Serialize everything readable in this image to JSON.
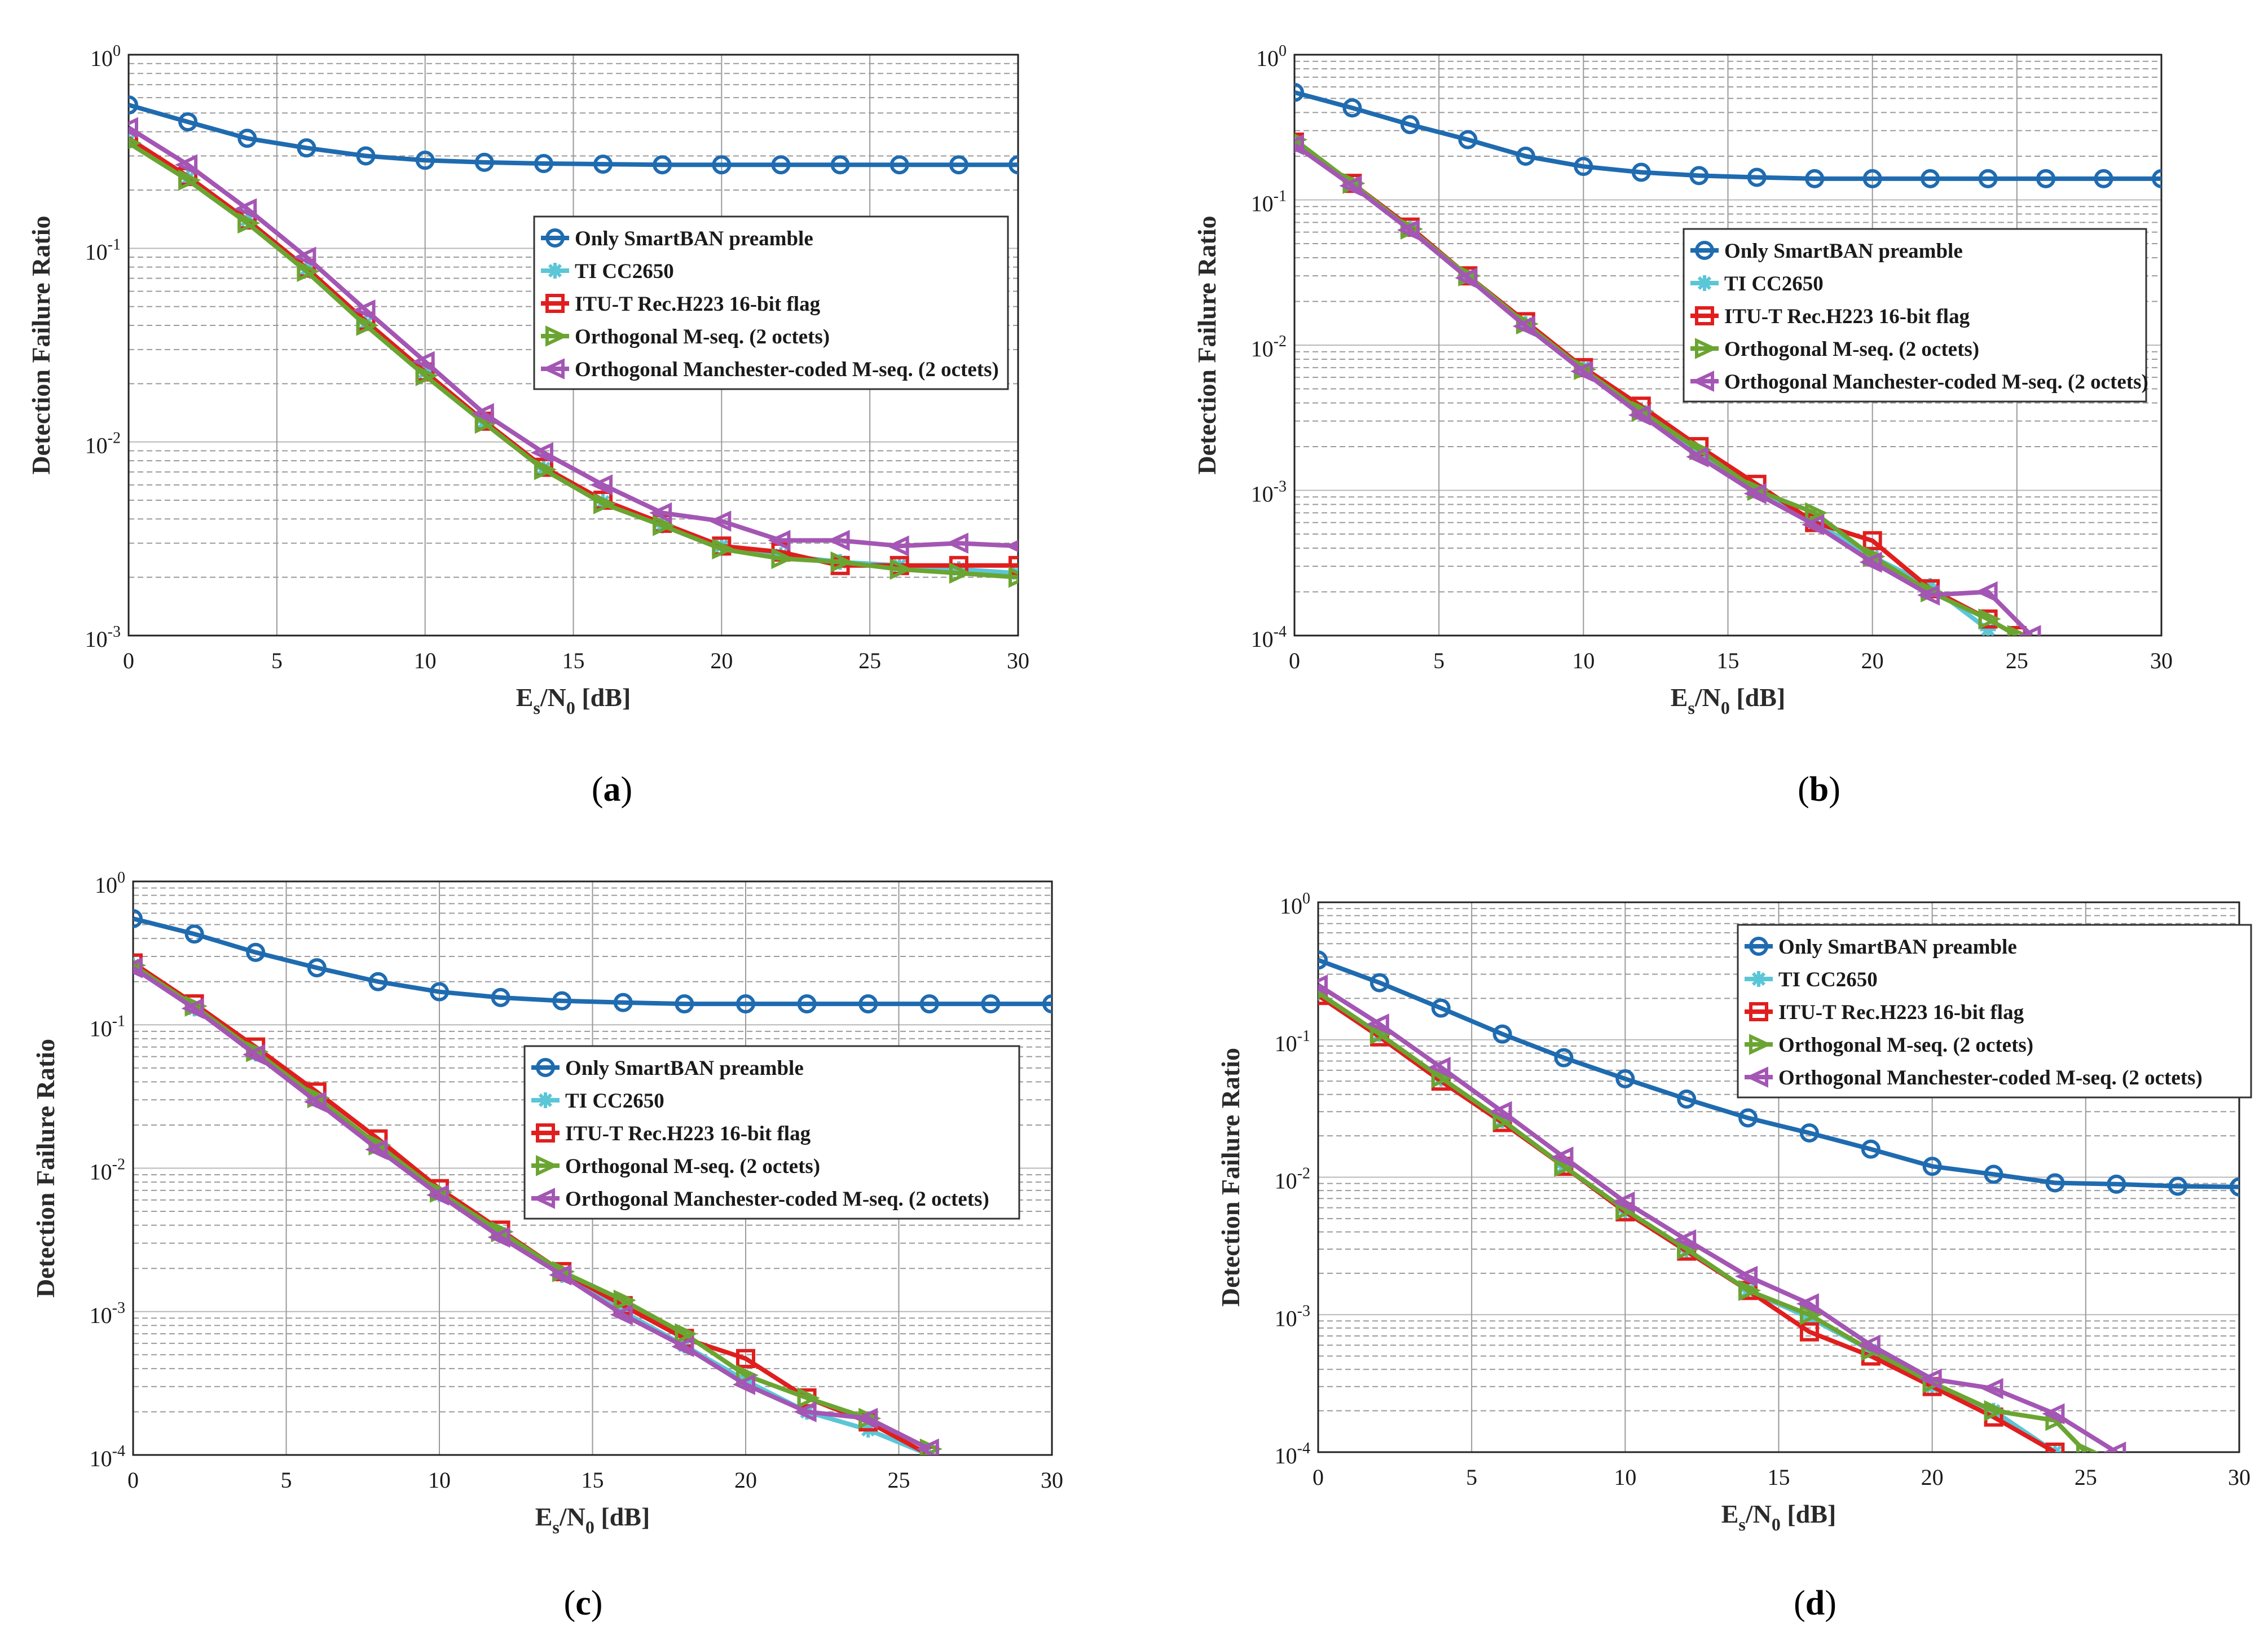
{
  "figure": {
    "panel_labels": [
      "(a)",
      "(b)",
      "(c)",
      "(d)"
    ]
  },
  "chart_data": [
    {
      "panel": "a",
      "type": "line",
      "title": "",
      "xlabel": "Es/N0 [dB]",
      "ylabel": "Detection Failure Ratio",
      "xlim": [
        0,
        30
      ],
      "ylim": [
        0.001,
        1
      ],
      "yscale": "log",
      "xticks": [
        "0",
        "5",
        "10",
        "15",
        "20",
        "25",
        "30"
      ],
      "yticks": [
        "10^-3",
        "10^-2",
        "10^-1",
        "10^0"
      ],
      "grid": true,
      "legend_loc": "center-right",
      "series": [
        {
          "name": "Only SmartBAN preamble",
          "color": "#1f6bb0",
          "marker": "circle",
          "x": [
            0,
            2,
            4,
            6,
            8,
            10,
            12,
            14,
            16,
            18,
            20,
            22,
            24,
            26,
            28,
            30
          ],
          "y": [
            0.55,
            0.45,
            0.37,
            0.33,
            0.3,
            0.285,
            0.278,
            0.274,
            0.272,
            0.27,
            0.27,
            0.27,
            0.27,
            0.27,
            0.27,
            0.27
          ]
        },
        {
          "name": "TI CC2650",
          "color": "#5bc6d6",
          "marker": "star",
          "x": [
            0,
            2,
            4,
            6,
            8,
            10,
            12,
            14,
            16,
            18,
            20,
            22,
            24,
            26,
            28,
            30
          ],
          "y": [
            0.36,
            0.23,
            0.14,
            0.078,
            0.041,
            0.023,
            0.0127,
            0.0073,
            0.0049,
            0.0037,
            0.0029,
            0.0026,
            0.0024,
            0.0023,
            0.0022,
            0.0021
          ]
        },
        {
          "name": "ITU-T Rec.H223 16-bit flag",
          "color": "#e01e1e",
          "marker": "square",
          "x": [
            0,
            2,
            4,
            6,
            8,
            10,
            12,
            14,
            16,
            18,
            20,
            22,
            24,
            26,
            28,
            30
          ],
          "y": [
            0.37,
            0.235,
            0.14,
            0.079,
            0.042,
            0.023,
            0.0128,
            0.0074,
            0.005,
            0.0038,
            0.0029,
            0.0027,
            0.0023,
            0.0023,
            0.0023,
            0.0023
          ]
        },
        {
          "name": "Orthogonal M-seq.  (2 octets)",
          "color": "#6aa532",
          "marker": "triangle-right",
          "x": [
            0,
            2,
            4,
            6,
            8,
            10,
            12,
            14,
            16,
            18,
            20,
            22,
            24,
            26,
            28,
            30
          ],
          "y": [
            0.35,
            0.225,
            0.135,
            0.076,
            0.04,
            0.022,
            0.0125,
            0.0072,
            0.0048,
            0.0037,
            0.0028,
            0.0025,
            0.0024,
            0.0022,
            0.0021,
            0.002
          ]
        },
        {
          "name": "Orthogonal Manchester-coded M-seq. (2 octets)",
          "color": "#a456b4",
          "marker": "triangle-left",
          "x": [
            0,
            2,
            4,
            6,
            8,
            10,
            12,
            14,
            16,
            18,
            20,
            22,
            24,
            26,
            28,
            30
          ],
          "y": [
            0.42,
            0.27,
            0.16,
            0.09,
            0.048,
            0.026,
            0.014,
            0.0088,
            0.006,
            0.0043,
            0.0039,
            0.0031,
            0.0031,
            0.0029,
            0.003,
            0.0029
          ]
        }
      ]
    },
    {
      "panel": "b",
      "type": "line",
      "title": "",
      "xlabel": "Es/N0 [dB]",
      "ylabel": "Detection Failure Ratio",
      "xlim": [
        0,
        30
      ],
      "ylim": [
        0.0001,
        1
      ],
      "yscale": "log",
      "xticks": [
        "0",
        "5",
        "10",
        "15",
        "20",
        "25",
        "30"
      ],
      "yticks": [
        "10^-4",
        "10^-3",
        "10^-2",
        "10^-1",
        "10^0"
      ],
      "grid": true,
      "legend_loc": "center-right",
      "series": [
        {
          "name": "Only SmartBAN preamble",
          "color": "#1f6bb0",
          "marker": "circle",
          "x": [
            0,
            2,
            4,
            6,
            8,
            10,
            12,
            14,
            16,
            18,
            20,
            22,
            24,
            26,
            28,
            30
          ],
          "y": [
            0.55,
            0.43,
            0.33,
            0.26,
            0.2,
            0.17,
            0.155,
            0.147,
            0.143,
            0.14,
            0.14,
            0.14,
            0.14,
            0.14,
            0.14,
            0.14
          ]
        },
        {
          "name": "TI CC2650",
          "color": "#5bc6d6",
          "marker": "star",
          "x": [
            0,
            2,
            4,
            6,
            8,
            10,
            12,
            14,
            16,
            18,
            20,
            22,
            24
          ],
          "y": [
            0.24,
            0.13,
            0.063,
            0.03,
            0.014,
            0.007,
            0.0035,
            0.0018,
            0.001,
            0.0006,
            0.00035,
            0.00022,
            0.00011
          ]
        },
        {
          "name": "ITU-T Rec.H223 16-bit flag",
          "color": "#e01e1e",
          "marker": "square",
          "x": [
            0,
            2,
            4,
            6,
            8,
            10,
            12,
            14,
            16,
            18,
            20,
            22,
            24,
            25
          ],
          "y": [
            0.25,
            0.13,
            0.065,
            0.03,
            0.0145,
            0.007,
            0.0038,
            0.002,
            0.0011,
            0.0006,
            0.00045,
            0.00021,
            0.00013,
            0.0001
          ]
        },
        {
          "name": "Orthogonal M-seq.  (2 octets)",
          "color": "#6aa532",
          "marker": "triangle-right",
          "x": [
            0,
            2,
            4,
            6,
            8,
            10,
            12,
            14,
            16,
            18,
            20,
            22,
            24,
            25
          ],
          "y": [
            0.26,
            0.13,
            0.063,
            0.03,
            0.014,
            0.0068,
            0.0035,
            0.0019,
            0.001,
            0.0007,
            0.00035,
            0.0002,
            0.00013,
            0.0001
          ]
        },
        {
          "name": "Orthogonal Manchester-coded M-seq. (2 octets)",
          "color": "#a456b4",
          "marker": "triangle-left",
          "x": [
            0,
            2,
            4,
            6,
            8,
            10,
            12,
            14,
            16,
            18,
            20,
            22,
            24,
            25.5
          ],
          "y": [
            0.24,
            0.125,
            0.062,
            0.029,
            0.0135,
            0.0066,
            0.0033,
            0.0017,
            0.00095,
            0.00058,
            0.00032,
            0.00019,
            0.0002,
            0.0001
          ]
        }
      ]
    },
    {
      "panel": "c",
      "type": "line",
      "title": "",
      "xlabel": "Es/N0 [dB]",
      "ylabel": "Detection Failure Ratio",
      "xlim": [
        0,
        30
      ],
      "ylim": [
        0.0001,
        1
      ],
      "yscale": "log",
      "xticks": [
        "0",
        "5",
        "10",
        "15",
        "20",
        "25",
        "30"
      ],
      "yticks": [
        "10^-4",
        "10^-3",
        "10^-2",
        "10^-1",
        "10^0"
      ],
      "grid": true,
      "legend_loc": "center-right",
      "series": [
        {
          "name": "Only SmartBAN preamble",
          "color": "#1f6bb0",
          "marker": "circle",
          "x": [
            0,
            2,
            4,
            6,
            8,
            10,
            12,
            14,
            16,
            18,
            20,
            22,
            24,
            26,
            28,
            30
          ],
          "y": [
            0.55,
            0.43,
            0.32,
            0.25,
            0.2,
            0.17,
            0.155,
            0.147,
            0.143,
            0.14,
            0.14,
            0.14,
            0.14,
            0.14,
            0.14,
            0.14
          ]
        },
        {
          "name": "TI CC2650",
          "color": "#5bc6d6",
          "marker": "star",
          "x": [
            0,
            2,
            4,
            6,
            8,
            10,
            12,
            14,
            16,
            18,
            20,
            22,
            24,
            26
          ],
          "y": [
            0.26,
            0.13,
            0.063,
            0.03,
            0.014,
            0.0066,
            0.0035,
            0.0018,
            0.001,
            0.00058,
            0.00033,
            0.0002,
            0.00015,
            0.0001
          ]
        },
        {
          "name": "ITU-T Rec.H223 16-bit flag",
          "color": "#e01e1e",
          "marker": "square",
          "x": [
            0,
            2,
            4,
            6,
            8,
            10,
            12,
            14,
            16,
            18,
            20,
            22,
            24,
            26
          ],
          "y": [
            0.27,
            0.14,
            0.07,
            0.034,
            0.016,
            0.0072,
            0.0037,
            0.0019,
            0.0011,
            0.00065,
            0.00047,
            0.00025,
            0.00017,
            0.0001
          ]
        },
        {
          "name": "Orthogonal M-seq.  (2 octets)",
          "color": "#6aa532",
          "marker": "triangle-right",
          "x": [
            0,
            2,
            4,
            6,
            8,
            10,
            12,
            14,
            16,
            18,
            20,
            22,
            24,
            26
          ],
          "y": [
            0.26,
            0.135,
            0.065,
            0.031,
            0.0145,
            0.0068,
            0.0036,
            0.0019,
            0.0012,
            0.0007,
            0.00036,
            0.00025,
            0.00018,
            0.00011
          ]
        },
        {
          "name": "Orthogonal Manchester-coded M-seq. (2 octets)",
          "color": "#a456b4",
          "marker": "triangle-left",
          "x": [
            0,
            2,
            4,
            6,
            8,
            10,
            12,
            14,
            16,
            18,
            20,
            22,
            24,
            26
          ],
          "y": [
            0.25,
            0.13,
            0.062,
            0.029,
            0.0135,
            0.0065,
            0.0033,
            0.0018,
            0.00095,
            0.00057,
            0.00031,
            0.0002,
            0.00018,
            0.00011
          ]
        }
      ]
    },
    {
      "panel": "d",
      "type": "line",
      "title": "",
      "xlabel": "Es/N0 [dB]",
      "ylabel": "Detection Failure Ratio",
      "xlim": [
        0,
        30
      ],
      "ylim": [
        0.0001,
        1
      ],
      "yscale": "log",
      "xticks": [
        "0",
        "5",
        "10",
        "15",
        "20",
        "25",
        "30"
      ],
      "yticks": [
        "10^-4",
        "10^-3",
        "10^-2",
        "10^-1",
        "10^0"
      ],
      "grid": true,
      "legend_loc": "top-right",
      "series": [
        {
          "name": "Only SmartBAN preamble",
          "color": "#1f6bb0",
          "marker": "circle",
          "x": [
            0,
            2,
            4,
            6,
            8,
            10,
            12,
            14,
            16,
            18,
            20,
            22,
            24,
            26,
            28,
            30
          ],
          "y": [
            0.38,
            0.26,
            0.17,
            0.11,
            0.074,
            0.052,
            0.037,
            0.027,
            0.021,
            0.016,
            0.012,
            0.0105,
            0.0091,
            0.0089,
            0.0086,
            0.0085
          ]
        },
        {
          "name": "TI CC2650",
          "color": "#5bc6d6",
          "marker": "star",
          "x": [
            0,
            2,
            4,
            6,
            8,
            10,
            12,
            14,
            16,
            18,
            20,
            22,
            24
          ],
          "y": [
            0.22,
            0.11,
            0.052,
            0.026,
            0.012,
            0.0056,
            0.0029,
            0.0015,
            0.00095,
            0.00055,
            0.0003,
            0.0002,
            0.0001
          ]
        },
        {
          "name": "ITU-T Rec.H223 16-bit flag",
          "color": "#e01e1e",
          "marker": "square",
          "x": [
            0,
            2,
            4,
            6,
            8,
            10,
            12,
            14,
            16,
            18,
            20,
            22,
            24
          ],
          "y": [
            0.21,
            0.105,
            0.05,
            0.025,
            0.012,
            0.0056,
            0.0029,
            0.0015,
            0.00075,
            0.0005,
            0.0003,
            0.00018,
            0.0001
          ]
        },
        {
          "name": "Orthogonal M-seq.  (2 octets)",
          "color": "#6aa532",
          "marker": "triangle-right",
          "x": [
            0,
            2,
            4,
            6,
            8,
            10,
            12,
            14,
            16,
            18,
            20,
            22,
            24,
            25
          ],
          "y": [
            0.22,
            0.11,
            0.053,
            0.026,
            0.012,
            0.0058,
            0.003,
            0.0015,
            0.001,
            0.00055,
            0.00032,
            0.0002,
            0.00017,
            0.0001
          ]
        },
        {
          "name": "Orthogonal Manchester-coded M-seq. (2 octets)",
          "color": "#a456b4",
          "marker": "triangle-left",
          "x": [
            0,
            2,
            4,
            6,
            8,
            10,
            12,
            14,
            16,
            18,
            20,
            22,
            24,
            26
          ],
          "y": [
            0.25,
            0.13,
            0.063,
            0.03,
            0.014,
            0.0066,
            0.0035,
            0.0019,
            0.0012,
            0.0006,
            0.00034,
            0.00029,
            0.00019,
            0.0001
          ]
        }
      ]
    }
  ]
}
